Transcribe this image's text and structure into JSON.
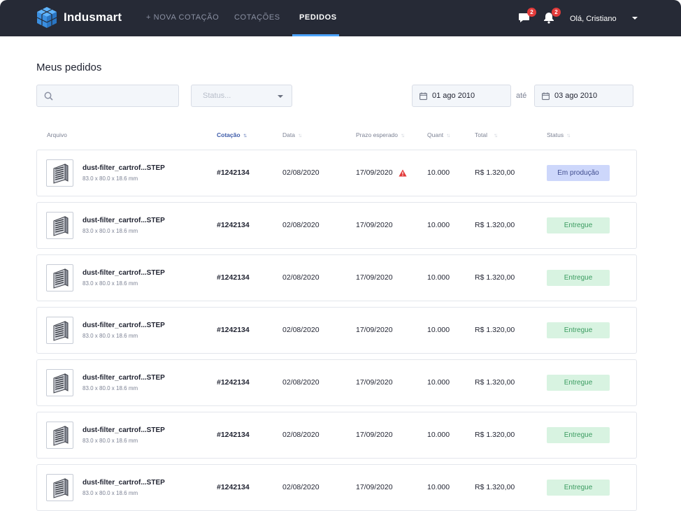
{
  "app": {
    "name": "Indusmart"
  },
  "nav": {
    "new_quote": "+ NOVA COTAÇÃO",
    "quotes": "COTAÇÕES",
    "orders": "PEDIDOS"
  },
  "header": {
    "messages_badge": "2",
    "notifications_badge": "2",
    "user_greeting": "Olá, Cristiano"
  },
  "page": {
    "title": "Meus pedidos"
  },
  "filters": {
    "search_placeholder": "",
    "status_placeholder": "Status...",
    "date_from": "01 ago 2010",
    "date_separator": "até",
    "date_to": "03 ago 2010"
  },
  "columns": {
    "file": "Arquivo",
    "quote": "Cotação",
    "date": "Data",
    "expected": "Prazo esperado",
    "quantity": "Quant",
    "total": "Total",
    "status": "Status"
  },
  "rows": [
    {
      "file": "dust-filter_cartrof...STEP",
      "dims": "83.0 x 80.0 x 18.6 mm",
      "quote": "#1242134",
      "date": "02/08/2020",
      "expected": "17/09/2020",
      "warning": true,
      "quantity": "10.000",
      "total": "R$ 1.320,00",
      "status": "Em produção",
      "status_type": "prod"
    },
    {
      "file": "dust-filter_cartrof...STEP",
      "dims": "83.0 x 80.0 x 18.6 mm",
      "quote": "#1242134",
      "date": "02/08/2020",
      "expected": "17/09/2020",
      "warning": false,
      "quantity": "10.000",
      "total": "R$ 1.320,00",
      "status": "Entregue",
      "status_type": "ok"
    },
    {
      "file": "dust-filter_cartrof...STEP",
      "dims": "83.0 x 80.0 x 18.6 mm",
      "quote": "#1242134",
      "date": "02/08/2020",
      "expected": "17/09/2020",
      "warning": false,
      "quantity": "10.000",
      "total": "R$ 1.320,00",
      "status": "Entregue",
      "status_type": "ok"
    },
    {
      "file": "dust-filter_cartrof...STEP",
      "dims": "83.0 x 80.0 x 18.6 mm",
      "quote": "#1242134",
      "date": "02/08/2020",
      "expected": "17/09/2020",
      "warning": false,
      "quantity": "10.000",
      "total": "R$ 1.320,00",
      "status": "Entregue",
      "status_type": "ok"
    },
    {
      "file": "dust-filter_cartrof...STEP",
      "dims": "83.0 x 80.0 x 18.6 mm",
      "quote": "#1242134",
      "date": "02/08/2020",
      "expected": "17/09/2020",
      "warning": false,
      "quantity": "10.000",
      "total": "R$ 1.320,00",
      "status": "Entregue",
      "status_type": "ok"
    },
    {
      "file": "dust-filter_cartrof...STEP",
      "dims": "83.0 x 80.0 x 18.6 mm",
      "quote": "#1242134",
      "date": "02/08/2020",
      "expected": "17/09/2020",
      "warning": false,
      "quantity": "10.000",
      "total": "R$ 1.320,00",
      "status": "Entregue",
      "status_type": "ok"
    },
    {
      "file": "dust-filter_cartrof...STEP",
      "dims": "83.0 x 80.0 x 18.6 mm",
      "quote": "#1242134",
      "date": "02/08/2020",
      "expected": "17/09/2020",
      "warning": false,
      "quantity": "10.000",
      "total": "R$ 1.320,00",
      "status": "Entregue",
      "status_type": "ok"
    }
  ],
  "icons": {
    "logo": "cube-logo-icon",
    "messages": "chat-icon",
    "notifications": "bell-icon",
    "search": "search-icon",
    "calendar": "calendar-icon",
    "warning": "warning-icon",
    "thumbnail": "filter-part-icon"
  },
  "colors": {
    "topbar": "#262a36",
    "accent": "#4ba3ff",
    "badge": "#e23b3b",
    "status_production_bg": "#cdd7fb",
    "status_delivered_bg": "#d8f3e1"
  }
}
